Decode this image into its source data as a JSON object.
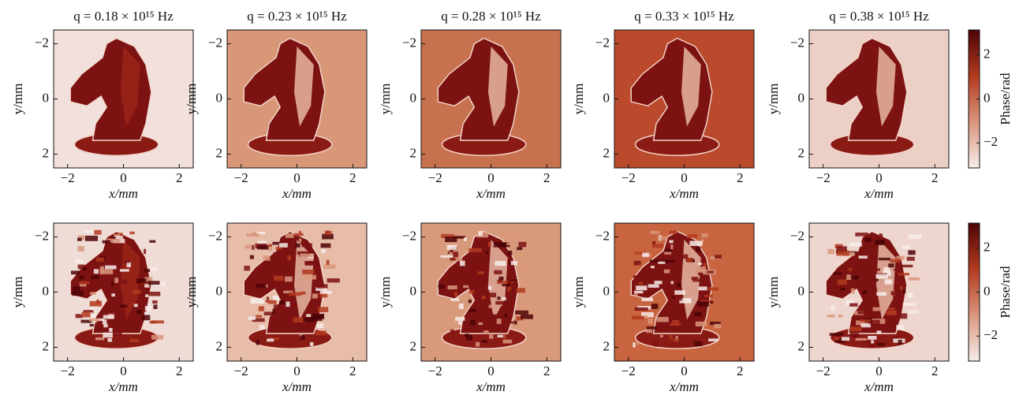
{
  "chart_data": [
    {
      "type": "heatmap",
      "title": "q = 0.18 × 10¹⁵ Hz",
      "xlabel": "x/mm",
      "ylabel": "y/mm",
      "color": "#f2e0dc",
      "xlim": [
        -2.5,
        2.5
      ],
      "ylim": [
        -2.5,
        2.5
      ],
      "xticks": [
        {
          "value": -2,
          "label": "−2"
        },
        0,
        2
      ],
      "yticks": [
        {
          "value": -2,
          "label": "−2"
        },
        0,
        2
      ]
    },
    {
      "type": "heatmap",
      "title": "q = 0.23 × 10¹⁵ Hz",
      "xlabel": "x/mm",
      "ylabel": "y/mm",
      "color": "#d89878",
      "xlim": [
        -2.5,
        2.5
      ],
      "ylim": [
        -2.5,
        2.5
      ],
      "xticks": [
        {
          "value": -2,
          "label": "−2"
        },
        0,
        2
      ],
      "yticks": [
        {
          "value": -2,
          "label": "−2"
        },
        0,
        2
      ]
    },
    {
      "type": "heatmap",
      "title": "q = 0.28 × 10¹⁵ Hz",
      "xlabel": "x/mm",
      "ylabel": "y/mm",
      "color": "#c8714f",
      "xlim": [
        -2.5,
        2.5
      ],
      "ylim": [
        -2.5,
        2.5
      ],
      "xticks": [
        {
          "value": -2,
          "label": "−2"
        },
        0,
        2
      ],
      "yticks": [
        {
          "value": -2,
          "label": "−2"
        },
        0,
        2
      ]
    },
    {
      "type": "heatmap",
      "title": "q = 0.33 × 10¹⁵ Hz",
      "xlabel": "x/mm",
      "ylabel": "y/mm",
      "color": "#bb4a2c",
      "xlim": [
        -2.5,
        2.5
      ],
      "ylim": [
        -2.5,
        2.5
      ],
      "xticks": [
        {
          "value": -2,
          "label": "−2"
        },
        0,
        2
      ],
      "yticks": [
        {
          "value": -2,
          "label": "−2"
        },
        0,
        2
      ]
    },
    {
      "type": "heatmap",
      "title": "q = 0.38 × 10¹⁵ Hz",
      "xlabel": "x/mm",
      "ylabel": "y/mm",
      "color": "#ecd0c6",
      "xlim": [
        -2.5,
        2.5
      ],
      "ylim": [
        -2.5,
        2.5
      ],
      "xticks": [
        {
          "value": -2,
          "label": "−2"
        },
        0,
        2
      ],
      "yticks": [
        {
          "value": -2,
          "label": "−2"
        },
        0,
        2
      ]
    },
    {
      "type": "heatmap",
      "xlabel": "x/mm",
      "ylabel": "y/mm",
      "color": "#f0dcd6",
      "xlim": [
        -2.5,
        2.5
      ],
      "ylim": [
        -2.5,
        2.5
      ],
      "xticks": [
        {
          "value": -2,
          "label": "−2"
        },
        0,
        2
      ],
      "yticks": [
        {
          "value": -2,
          "label": "−2"
        },
        0,
        2
      ]
    },
    {
      "type": "heatmap",
      "xlabel": "x/mm",
      "ylabel": "y/mm",
      "color": "#e7bca8",
      "xlim": [
        -2.5,
        2.5
      ],
      "ylim": [
        -2.5,
        2.5
      ],
      "xticks": [
        {
          "value": -2,
          "label": "−2"
        },
        0,
        2
      ],
      "yticks": [
        {
          "value": -2,
          "label": "−2"
        },
        0,
        2
      ]
    },
    {
      "type": "heatmap",
      "xlabel": "x/mm",
      "ylabel": "y/mm",
      "color": "#d99a7c",
      "xlim": [
        -2.5,
        2.5
      ],
      "ylim": [
        -2.5,
        2.5
      ],
      "xticks": [
        {
          "value": -2,
          "label": "−2"
        },
        0,
        2
      ],
      "yticks": [
        {
          "value": -2,
          "label": "−2"
        },
        0,
        2
      ]
    },
    {
      "type": "heatmap",
      "xlabel": "x/mm",
      "ylabel": "y/mm",
      "color": "#c8643f",
      "xlim": [
        -2.5,
        2.5
      ],
      "ylim": [
        -2.5,
        2.5
      ],
      "xticks": [
        {
          "value": -2,
          "label": "−2"
        },
        0,
        2
      ],
      "yticks": [
        {
          "value": -2,
          "label": "−2"
        },
        0,
        2
      ]
    },
    {
      "type": "heatmap",
      "xlabel": "x/mm",
      "ylabel": "y/mm",
      "color": "#eed6ce",
      "xlim": [
        -2.5,
        2.5
      ],
      "ylim": [
        -2.5,
        2.5
      ],
      "xticks": [
        {
          "value": -2,
          "label": "−2"
        },
        0,
        2
      ],
      "yticks": [
        {
          "value": -2,
          "label": "−2"
        },
        0,
        2
      ]
    },
    {
      "type": "colorbar",
      "label": "Phase/rad",
      "colors": [
        "#f7ecea",
        "#d9967d",
        "#b23a1e",
        "#4d0407"
      ],
      "ylim": [
        -3.14,
        3.14
      ],
      "yticks": [
        {
          "value": -2,
          "label": "−2"
        },
        0,
        2
      ]
    },
    {
      "type": "colorbar",
      "label": "Phase/rad",
      "colors": [
        "#f7ecea",
        "#d9967d",
        "#b23a1e",
        "#4d0407"
      ],
      "ylim": [
        -3.14,
        3.14
      ],
      "yticks": [
        {
          "value": -2,
          "label": "−2"
        },
        0,
        2
      ]
    }
  ]
}
